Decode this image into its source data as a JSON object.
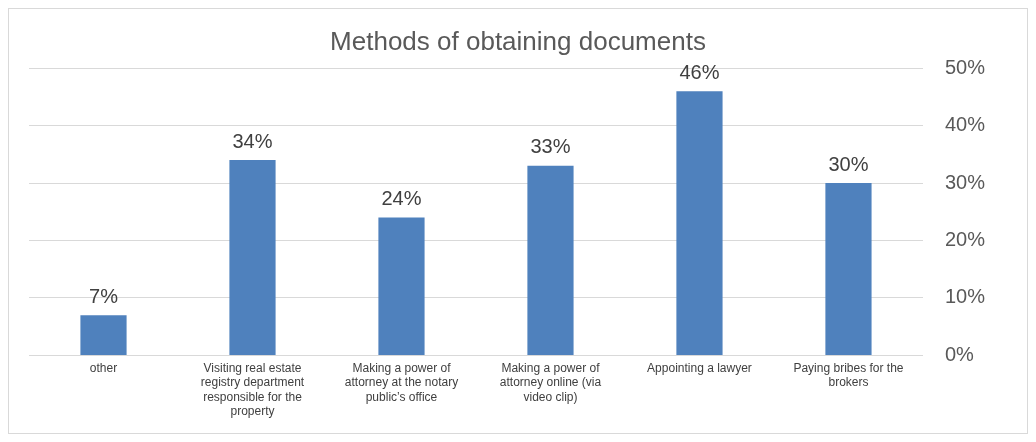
{
  "chart_data": {
    "type": "bar",
    "title": "Methods of obtaining documents",
    "categories": [
      "other",
      "Visiting real estate registry department responsible for the property",
      "Making a power of attorney at the notary public’s office",
      "Making a power of attorney online (via video clip)",
      "Appointing a lawyer",
      "Paying bribes for the brokers"
    ],
    "values": [
      7,
      34,
      24,
      33,
      46,
      30
    ],
    "value_labels": [
      "7%",
      "34%",
      "24%",
      "33%",
      "46%",
      "30%"
    ],
    "color": "#4f81bd",
    "ylim": [
      0,
      50
    ],
    "yticks": [
      {
        "value": 0,
        "label": "0%"
      },
      {
        "value": 10,
        "label": "10%"
      },
      {
        "value": 20,
        "label": "20%"
      },
      {
        "value": 30,
        "label": "30%"
      },
      {
        "value": 40,
        "label": "40%"
      },
      {
        "value": 50,
        "label": "50%"
      }
    ],
    "grid": "y",
    "legend": false
  }
}
